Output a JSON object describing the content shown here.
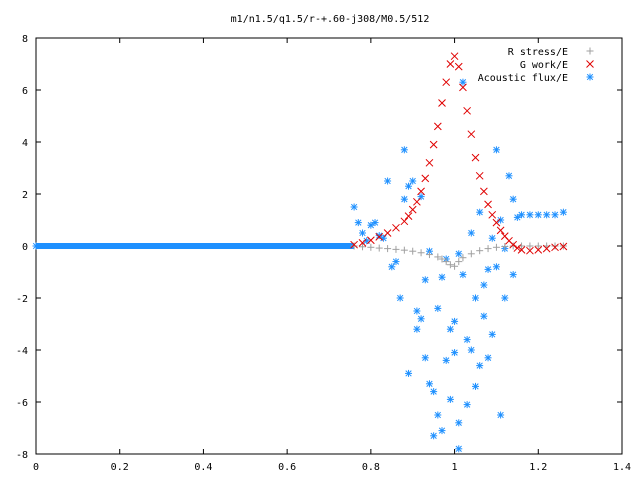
{
  "chart_data": {
    "type": "scatter",
    "title": "m1/n1.5/q1.5/r-+.60-j308/M0.5/512",
    "xlabel": "",
    "ylabel": "",
    "xlim": [
      0,
      1.4
    ],
    "ylim": [
      -8,
      8
    ],
    "x_ticks": [
      "0",
      "0.2",
      "0.4",
      "0.6",
      "0.8",
      "1",
      "1.2",
      "1.4"
    ],
    "y_ticks": [
      "8",
      "6",
      "4",
      "2",
      "0",
      "-2",
      "-4",
      "-6",
      "-8"
    ],
    "x_tick_values": [
      0,
      0.2,
      0.4,
      0.6,
      0.8,
      1.0,
      1.2,
      1.4
    ],
    "y_tick_values": [
      8,
      6,
      4,
      2,
      0,
      -2,
      -4,
      -6,
      -8
    ],
    "grid": false,
    "legend_position": "top-right",
    "series": [
      {
        "name": "R stress/E",
        "marker": "plus",
        "color": "#a0a0a0",
        "points": [
          [
            0.76,
            0.0
          ],
          [
            0.78,
            -0.03
          ],
          [
            0.8,
            -0.05
          ],
          [
            0.82,
            -0.08
          ],
          [
            0.84,
            -0.1
          ],
          [
            0.86,
            -0.13
          ],
          [
            0.88,
            -0.16
          ],
          [
            0.9,
            -0.2
          ],
          [
            0.92,
            -0.26
          ],
          [
            0.94,
            -0.33
          ],
          [
            0.96,
            -0.42
          ],
          [
            0.97,
            -0.5
          ],
          [
            0.98,
            -0.6
          ],
          [
            0.99,
            -0.72
          ],
          [
            1.0,
            -0.78
          ],
          [
            1.01,
            -0.6
          ],
          [
            1.02,
            -0.45
          ],
          [
            1.04,
            -0.3
          ],
          [
            1.06,
            -0.18
          ],
          [
            1.08,
            -0.1
          ],
          [
            1.1,
            -0.05
          ],
          [
            1.12,
            -0.02
          ],
          [
            1.14,
            0.0
          ],
          [
            1.16,
            0.0
          ],
          [
            1.18,
            0.0
          ],
          [
            1.2,
            0.0
          ],
          [
            1.22,
            0.0
          ],
          [
            1.24,
            0.0
          ],
          [
            1.26,
            0.0
          ]
        ]
      },
      {
        "name": "G work/E",
        "marker": "cross",
        "color": "#e00000",
        "points": [
          [
            0.76,
            0.05
          ],
          [
            0.78,
            0.12
          ],
          [
            0.8,
            0.22
          ],
          [
            0.82,
            0.35
          ],
          [
            0.84,
            0.5
          ],
          [
            0.86,
            0.7
          ],
          [
            0.88,
            0.95
          ],
          [
            0.89,
            1.15
          ],
          [
            0.9,
            1.4
          ],
          [
            0.91,
            1.7
          ],
          [
            0.92,
            2.1
          ],
          [
            0.93,
            2.6
          ],
          [
            0.94,
            3.2
          ],
          [
            0.95,
            3.9
          ],
          [
            0.96,
            4.6
          ],
          [
            0.97,
            5.5
          ],
          [
            0.98,
            6.3
          ],
          [
            0.99,
            7.0
          ],
          [
            1.0,
            7.3
          ],
          [
            1.01,
            6.9
          ],
          [
            1.02,
            6.1
          ],
          [
            1.03,
            5.2
          ],
          [
            1.04,
            4.3
          ],
          [
            1.05,
            3.4
          ],
          [
            1.06,
            2.7
          ],
          [
            1.07,
            2.1
          ],
          [
            1.08,
            1.6
          ],
          [
            1.09,
            1.2
          ],
          [
            1.1,
            0.9
          ],
          [
            1.11,
            0.6
          ],
          [
            1.12,
            0.38
          ],
          [
            1.13,
            0.2
          ],
          [
            1.14,
            0.05
          ],
          [
            1.15,
            -0.08
          ],
          [
            1.16,
            -0.15
          ],
          [
            1.18,
            -0.18
          ],
          [
            1.2,
            -0.15
          ],
          [
            1.22,
            -0.1
          ],
          [
            1.24,
            -0.05
          ],
          [
            1.26,
            -0.02
          ]
        ]
      },
      {
        "name": "Acoustic flux/E",
        "marker": "star",
        "color": "#1e90ff",
        "points": [
          [
            0.0,
            0.0
          ],
          [
            0.76,
            1.5
          ],
          [
            0.77,
            0.9
          ],
          [
            0.78,
            0.5
          ],
          [
            0.79,
            0.2
          ],
          [
            0.8,
            0.8
          ],
          [
            0.81,
            0.9
          ],
          [
            0.82,
            0.4
          ],
          [
            0.83,
            0.3
          ],
          [
            0.84,
            2.5
          ],
          [
            0.85,
            -0.8
          ],
          [
            0.86,
            -0.6
          ],
          [
            0.87,
            -2.0
          ],
          [
            0.88,
            1.8
          ],
          [
            0.88,
            3.7
          ],
          [
            0.89,
            -4.9
          ],
          [
            0.89,
            2.3
          ],
          [
            0.9,
            2.5
          ],
          [
            0.91,
            -2.5
          ],
          [
            0.91,
            -3.2
          ],
          [
            0.92,
            -2.8
          ],
          [
            0.92,
            1.9
          ],
          [
            0.93,
            -1.3
          ],
          [
            0.93,
            -4.3
          ],
          [
            0.94,
            -0.2
          ],
          [
            0.94,
            -5.3
          ],
          [
            0.95,
            -5.6
          ],
          [
            0.95,
            -7.3
          ],
          [
            0.96,
            -6.5
          ],
          [
            0.96,
            -2.4
          ],
          [
            0.97,
            -7.1
          ],
          [
            0.97,
            -1.2
          ],
          [
            0.98,
            -4.4
          ],
          [
            0.98,
            -0.5
          ],
          [
            0.99,
            -3.2
          ],
          [
            0.99,
            -5.9
          ],
          [
            1.0,
            -2.9
          ],
          [
            1.0,
            -4.1
          ],
          [
            1.01,
            -6.8
          ],
          [
            1.01,
            -7.8
          ],
          [
            1.01,
            -0.3
          ],
          [
            1.02,
            -1.1
          ],
          [
            1.02,
            6.3
          ],
          [
            1.03,
            -3.6
          ],
          [
            1.03,
            -6.1
          ],
          [
            1.04,
            -4.0
          ],
          [
            1.04,
            0.5
          ],
          [
            1.05,
            -2.0
          ],
          [
            1.05,
            -5.4
          ],
          [
            1.06,
            -4.6
          ],
          [
            1.06,
            1.3
          ],
          [
            1.07,
            -1.5
          ],
          [
            1.07,
            -2.7
          ],
          [
            1.08,
            -0.9
          ],
          [
            1.08,
            -4.3
          ],
          [
            1.09,
            0.3
          ],
          [
            1.09,
            -3.4
          ],
          [
            1.1,
            -0.8
          ],
          [
            1.1,
            3.7
          ],
          [
            1.11,
            1.0
          ],
          [
            1.11,
            -6.5
          ],
          [
            1.12,
            -0.1
          ],
          [
            1.12,
            -2.0
          ],
          [
            1.13,
            2.7
          ],
          [
            1.14,
            -1.1
          ],
          [
            1.14,
            1.8
          ],
          [
            1.15,
            1.1
          ],
          [
            1.16,
            1.2
          ],
          [
            1.18,
            1.2
          ],
          [
            1.2,
            1.2
          ],
          [
            1.22,
            1.2
          ],
          [
            1.24,
            1.2
          ],
          [
            1.26,
            1.3
          ]
        ]
      }
    ]
  }
}
